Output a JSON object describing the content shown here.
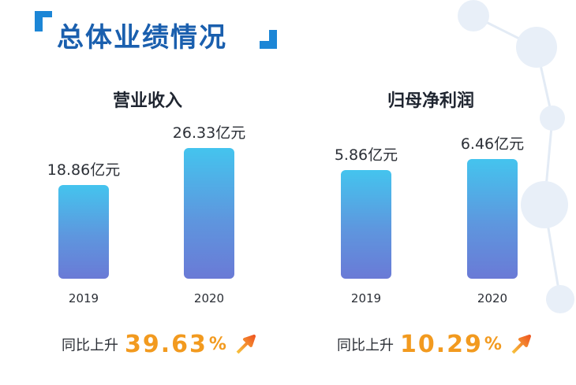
{
  "header": {
    "title": "总体业绩情况"
  },
  "chart_data": [
    {
      "type": "bar",
      "title": "营业收入",
      "categories": [
        "2019",
        "2020"
      ],
      "values": [
        18.86,
        26.33
      ],
      "value_labels": [
        "18.86亿元",
        "26.33亿元"
      ],
      "unit": "亿元",
      "growth": {
        "label": "同比上升",
        "value": "39.63",
        "suffix": "%"
      },
      "colors": {
        "bar_top": "#44c4ee",
        "bar_bottom": "#6a7ad6"
      }
    },
    {
      "type": "bar",
      "title": "归母净利润",
      "categories": [
        "2019",
        "2020"
      ],
      "values": [
        5.86,
        6.46
      ],
      "value_labels": [
        "5.86亿元",
        "6.46亿元"
      ],
      "unit": "亿元",
      "growth": {
        "label": "同比上升",
        "value": "10.29",
        "suffix": "%"
      },
      "colors": {
        "bar_top": "#44c4ee",
        "bar_bottom": "#6a7ad6"
      }
    }
  ],
  "colors": {
    "title": "#1a5fae",
    "accent": "#1c86d6",
    "growth": "#f29a1f"
  }
}
